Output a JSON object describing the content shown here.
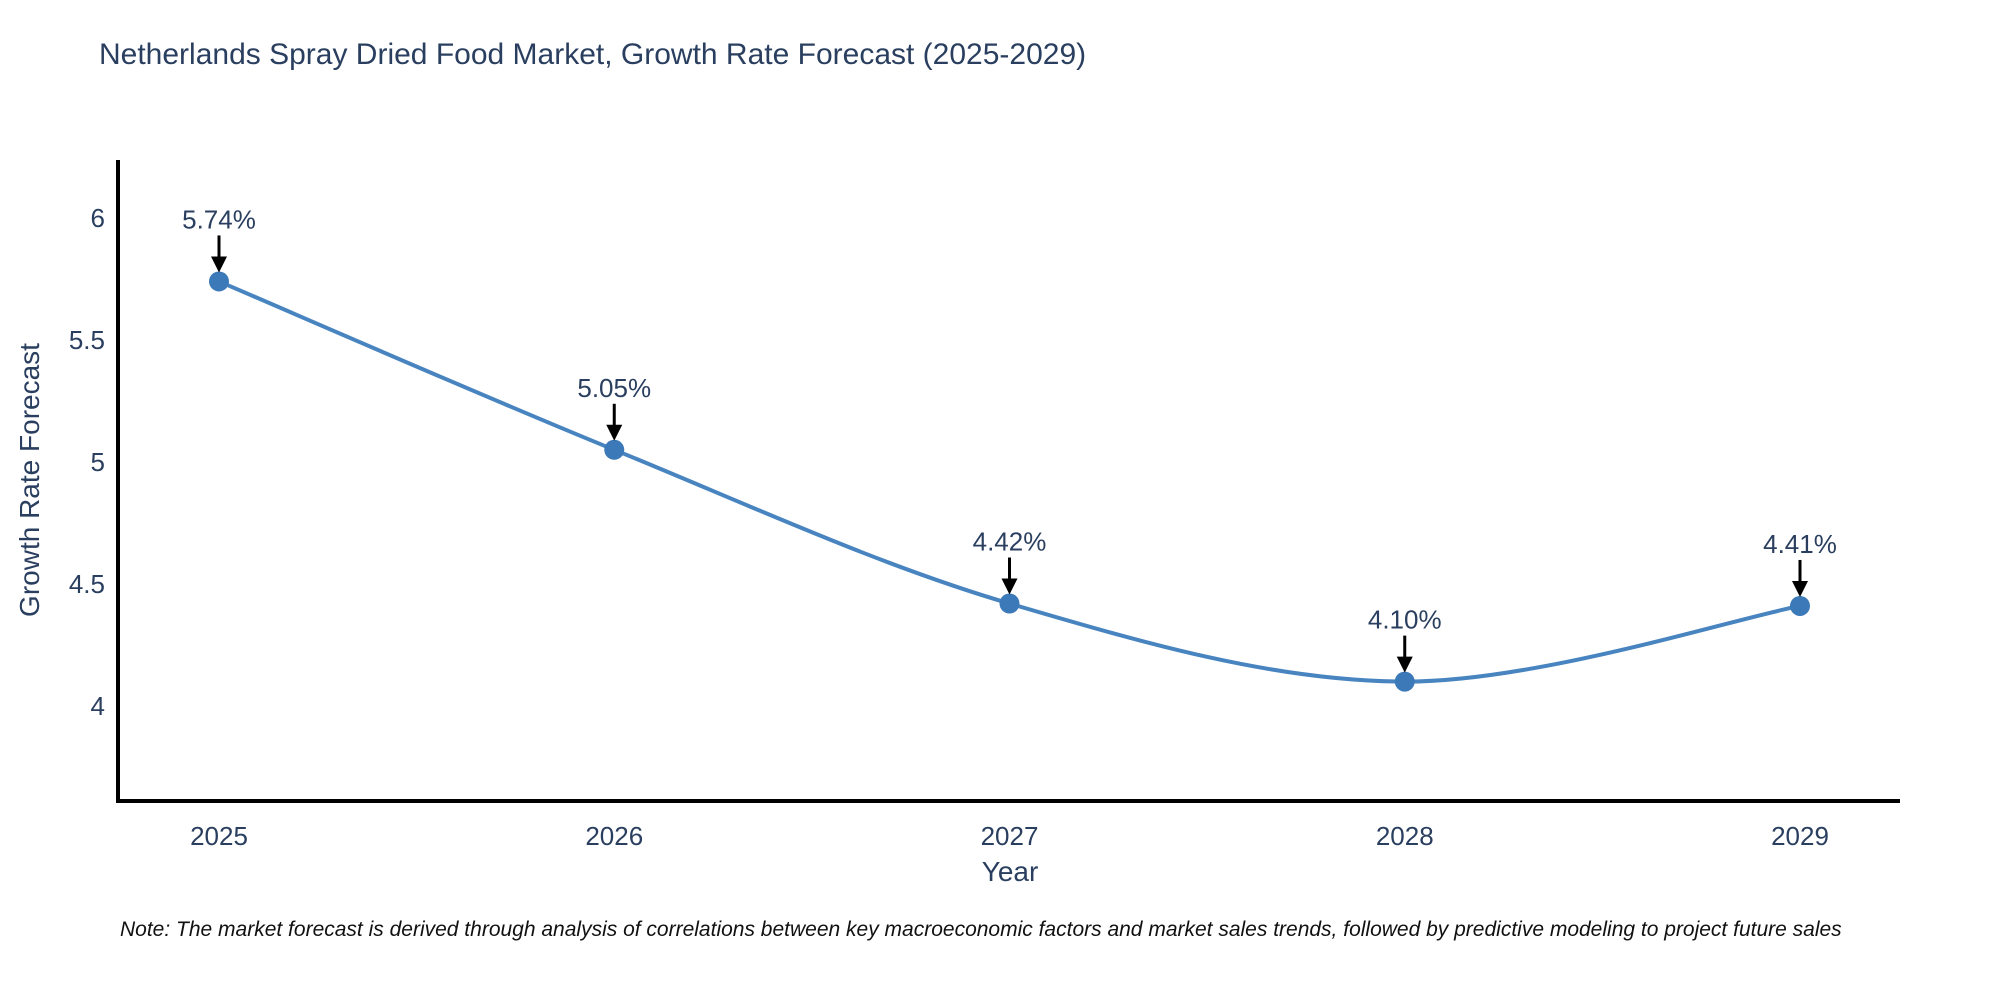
{
  "note": "Note: The market forecast is derived through analysis of correlations between key macroeconomic factors and market sales trends, followed by predictive modeling to project future sales",
  "chart_data": {
    "type": "line",
    "title": "Netherlands Spray Dried Food Market, Growth Rate Forecast (2025-2029)",
    "xlabel": "Year",
    "ylabel": "Growth Rate Forecast",
    "categories": [
      2025,
      2026,
      2027,
      2028,
      2029
    ],
    "x_tick_labels": [
      "2025",
      "2026",
      "2027",
      "2028",
      "2029"
    ],
    "series": [
      {
        "name": "Growth Rate Forecast",
        "values": [
          5.74,
          5.05,
          4.42,
          4.1,
          4.41
        ]
      }
    ],
    "data_labels": [
      "5.74%",
      "5.05%",
      "4.42%",
      "4.10%",
      "4.41%"
    ],
    "y_ticks": [
      6,
      5.5,
      5,
      4.5,
      4
    ],
    "y_tick_labels": [
      "6",
      "5.5",
      "5",
      "4.5",
      "4"
    ],
    "ylim": [
      3.6,
      6.24
    ],
    "grid": false,
    "legend": "none",
    "line_shape": "spline",
    "marker": "circle",
    "colors": {
      "line": "#4884BF",
      "marker": "#3B79B9",
      "axis": "#000000",
      "text": "#2a3f5f",
      "arrow": "#000000",
      "note_text": "#111111",
      "background": "#ffffff"
    }
  }
}
